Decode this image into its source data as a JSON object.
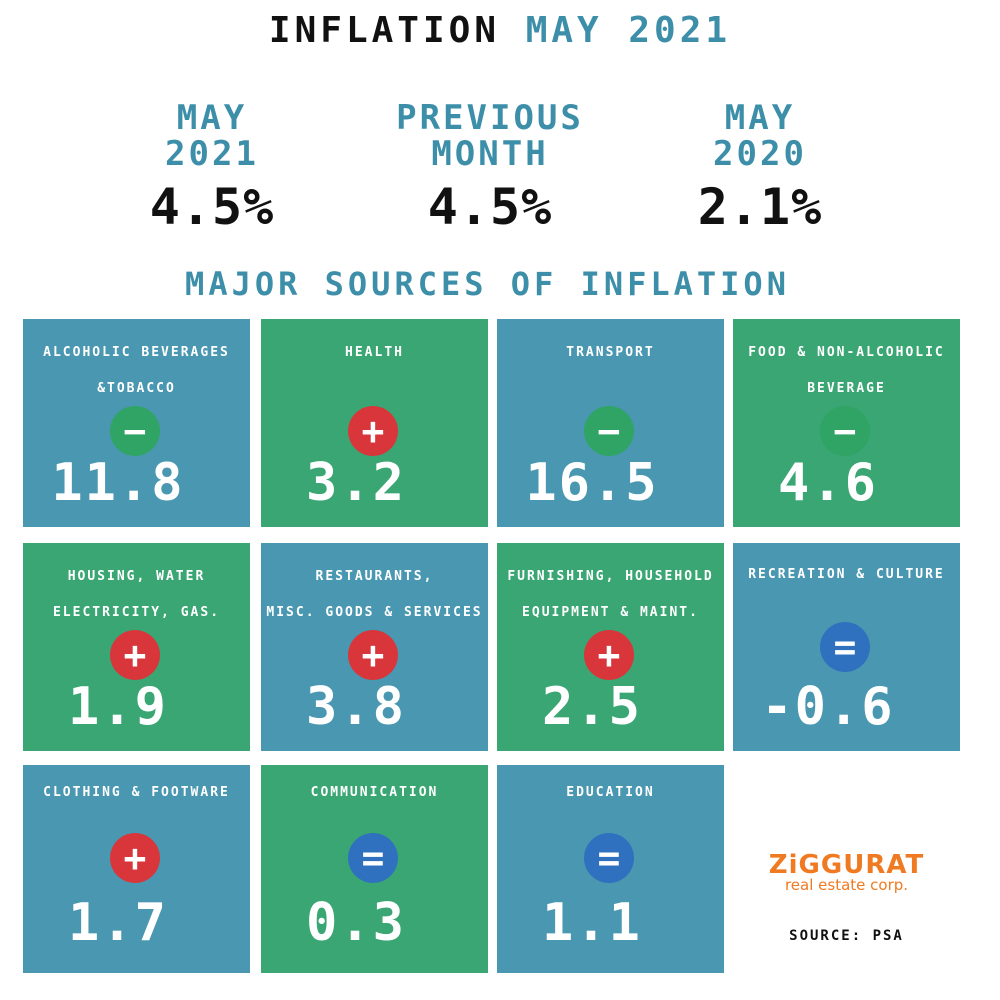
{
  "header": {
    "title": "INFLATION",
    "title_highlight": "MAY 2021"
  },
  "summary": [
    {
      "label": [
        "MAY",
        "2021"
      ],
      "value": "4.5%"
    },
    {
      "label": [
        "PREVIOUS",
        "MONTH"
      ],
      "value": "4.5%"
    },
    {
      "label": [
        "MAY",
        "2020"
      ],
      "value": "2.1%"
    }
  ],
  "section_title": "MAJOR SOURCES OF INFLATION",
  "tiles": [
    {
      "label": [
        "ALCOHOLIC BEVERAGES",
        "&TOBACCO"
      ],
      "sign": "−",
      "value": "11.8"
    },
    {
      "label": [
        "HEALTH"
      ],
      "sign": "+",
      "value": "3.2"
    },
    {
      "label": [
        "TRANSPORT"
      ],
      "sign": "−",
      "value": "16.5"
    },
    {
      "label": [
        "FOOD & NON-ALCOHOLIC",
        "BEVERAGE"
      ],
      "sign": "−",
      "value": "4.6"
    },
    {
      "label": [
        "HOUSING, WATER",
        "ELECTRICITY, GAS."
      ],
      "sign": "+",
      "value": "1.9"
    },
    {
      "label": [
        "RESTAURANTS,",
        "MISC. GOODS & SERVICES"
      ],
      "sign": "+",
      "value": "3.8"
    },
    {
      "label": [
        "FURNISHING, HOUSEHOLD",
        "EQUIPMENT  & MAINT."
      ],
      "sign": "+",
      "value": "2.5"
    },
    {
      "label": [
        "RECREATION & CULTURE"
      ],
      "sign": "=",
      "value": "-0.6"
    },
    {
      "label": [
        "CLOTHING & FOOTWARE"
      ],
      "sign": "+",
      "value": "1.7"
    },
    {
      "label": [
        "COMMUNICATION"
      ],
      "sign": "=",
      "value": "0.3"
    },
    {
      "label": [
        "EDUCATION"
      ],
      "sign": "=",
      "value": "1.1"
    }
  ],
  "logo": {
    "name": "ZiGGURAT",
    "subtitle": "real estate corp."
  },
  "source": "SOURCE: PSA"
}
